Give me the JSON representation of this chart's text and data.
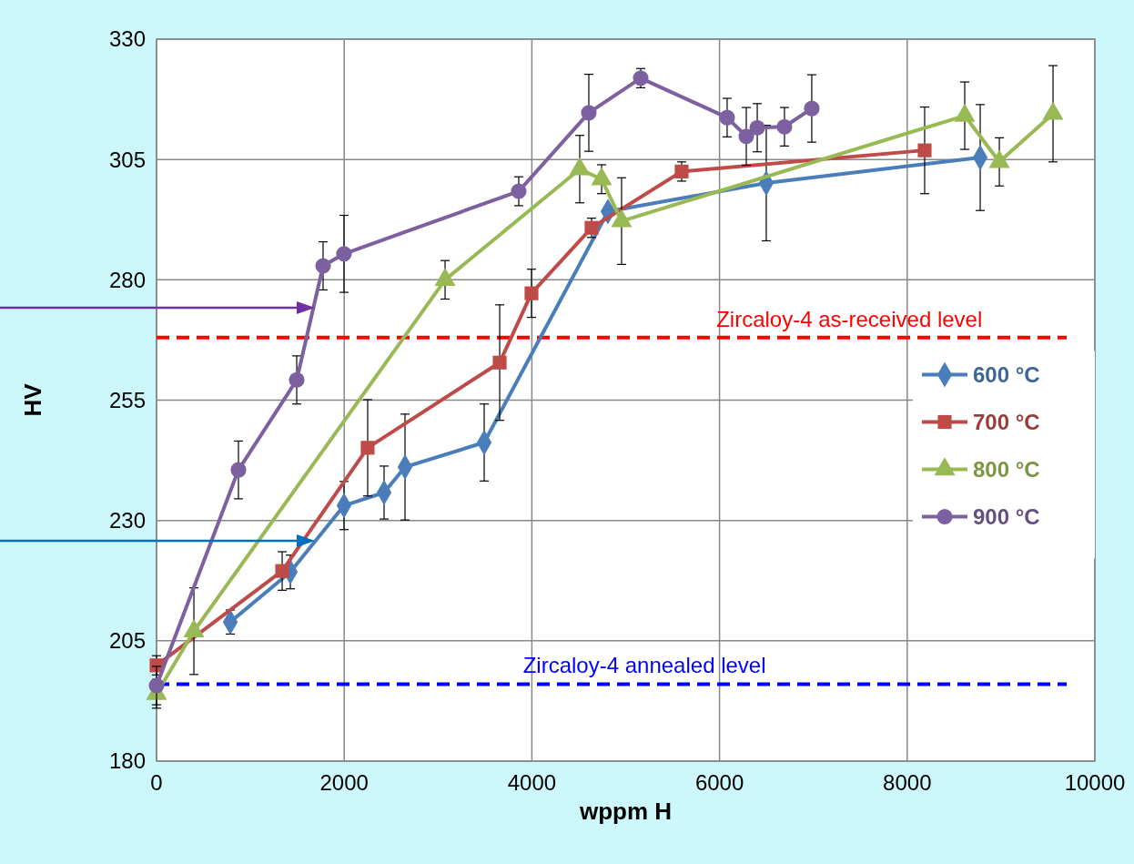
{
  "chart_data": {
    "type": "line",
    "xlabel": "wppm H",
    "ylabel": "HV",
    "xlim": [
      0,
      10000
    ],
    "xticks": [
      0,
      2000,
      4000,
      6000,
      8000,
      10000
    ],
    "ylim": [
      180,
      330
    ],
    "yticks": [
      180,
      205,
      230,
      255,
      280,
      305,
      330
    ],
    "grid": true,
    "legend": "right",
    "line_style": "solid",
    "series": [
      {
        "name": "600 °C",
        "color": "#4a7ebb",
        "marker": "diamond",
        "x": [
          786,
          1426,
          1998,
          2425,
          2648,
          3492,
          4811,
          6498,
          8778
        ],
        "values": [
          208.9,
          219.3,
          233.1,
          235.8,
          241.1,
          246.2,
          294.2,
          300.1,
          305.4
        ],
        "errors": [
          2.5,
          3.5,
          5,
          5.5,
          11,
          8,
          1,
          12,
          11
        ]
      },
      {
        "name": "700 °C",
        "color": "#be4b48",
        "marker": "square",
        "x": [
          0,
          1339,
          2250,
          3657,
          3996,
          4636,
          5596,
          8186
        ],
        "values": [
          199.9,
          219.5,
          245.1,
          262.8,
          277.2,
          290.8,
          302.5,
          306.9
        ],
        "errors": [
          2,
          4,
          10,
          12,
          5,
          2,
          2,
          9
        ]
      },
      {
        "name": "800 °C",
        "color": "#98b954",
        "marker": "triangle",
        "x": [
          0,
          398,
          3075,
          4510,
          4743,
          4956,
          8613,
          8982,
          9554
        ],
        "values": [
          194,
          207,
          280,
          303,
          300.9,
          292.2,
          314.1,
          304.5,
          314.5
        ],
        "errors": [
          3,
          9,
          4,
          7,
          3,
          9,
          7,
          5,
          10
        ]
      },
      {
        "name": "900 °C",
        "color": "#7d60a0",
        "marker": "circle",
        "x": [
          0,
          873,
          1494,
          1775,
          1998,
          3860,
          4607,
          5160,
          6081,
          6285,
          6402,
          6692,
          6983
        ],
        "values": [
          195.7,
          240.5,
          259.2,
          282.9,
          285.4,
          298.4,
          314.7,
          321.9,
          313.7,
          309.8,
          311.6,
          311.8,
          315.6
        ],
        "errors": [
          4,
          6,
          5,
          5,
          8,
          3,
          8,
          2,
          4,
          6,
          5,
          4,
          7
        ]
      }
    ],
    "ref_lines": [
      {
        "axis": "y",
        "value": 268,
        "label": "Zircaloy-4 as-received level",
        "color": "#ff0000",
        "line_style": "dashed"
      },
      {
        "axis": "y",
        "value": 196,
        "label": "Zircaloy-4 annealed level",
        "color": "#0000ff",
        "line_style": "dashed"
      }
    ]
  }
}
